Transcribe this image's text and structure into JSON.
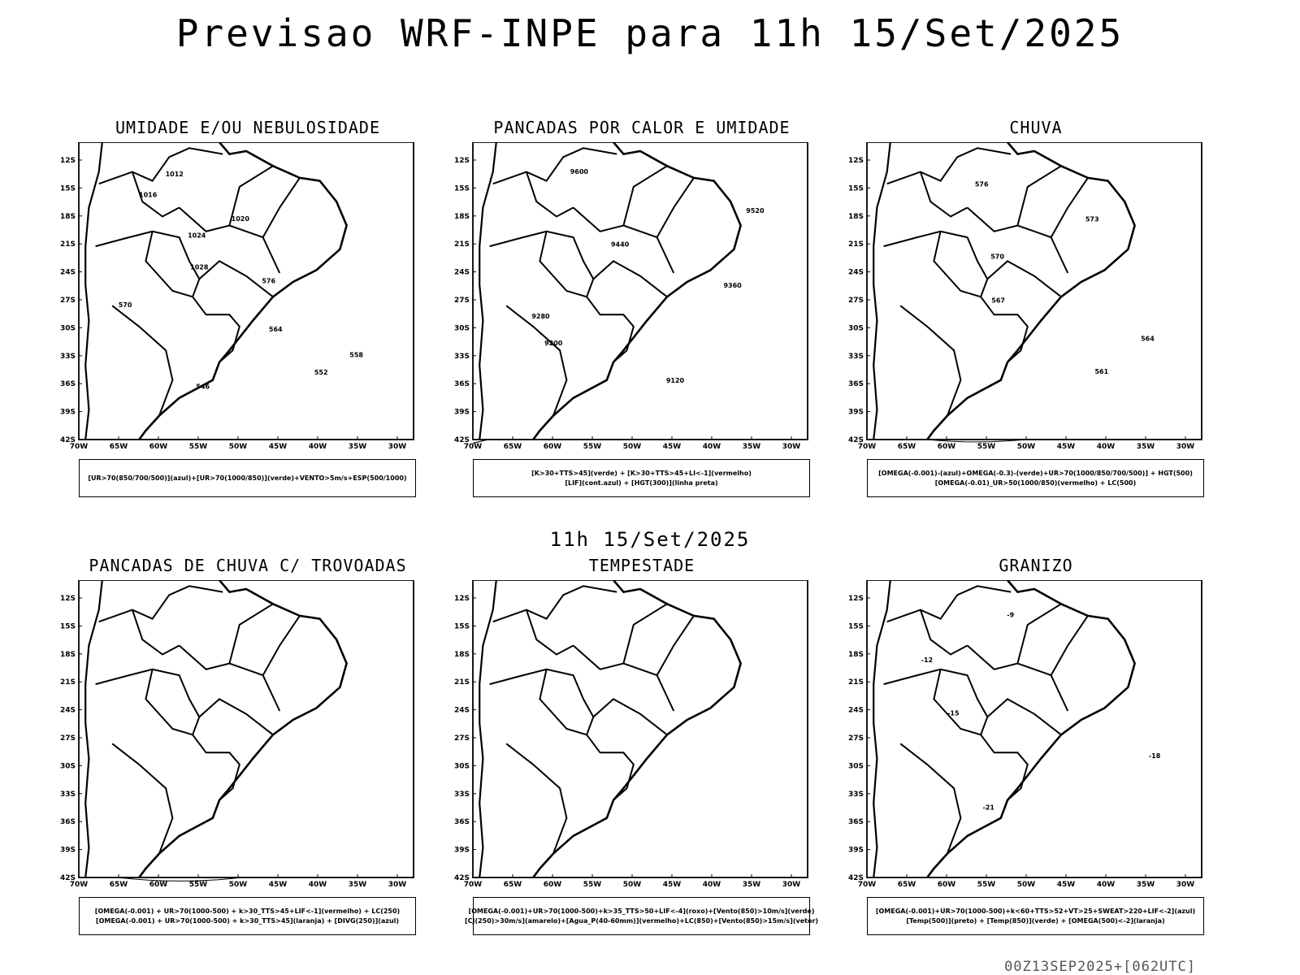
{
  "title": "Previsao WRF-INPE  para 11h 15/Set/2025",
  "subtitle": "11h 15/Set/2025",
  "footer": "00Z13SEP2025+[062UTC]",
  "axes": {
    "lat_labels": [
      "12S",
      "15S",
      "18S",
      "21S",
      "24S",
      "27S",
      "30S",
      "33S",
      "36S",
      "39S",
      "42S"
    ],
    "lon_labels": [
      "70W",
      "65W",
      "60W",
      "55W",
      "50W",
      "45W",
      "40W",
      "35W",
      "30W"
    ]
  },
  "colors": {
    "red": "#ff3b3b",
    "green": "#22dd22",
    "blue": "#2233ff",
    "lavender": "#a8a8ff",
    "darkteal": "#1f4040",
    "yellow": "#e6dd33",
    "orange": "#ff8a2a"
  },
  "panels": [
    {
      "id": "umidade",
      "title": "UMIDADE E/OU NEBULOSIDADE",
      "legend": [
        "[UR>70(850/700/500)](azul)+[UR>70(1000/850)](verde)+VENTO>5m/s+ESP(500/1000)"
      ],
      "labels": [
        "1012",
        "1016",
        "1020",
        "1024",
        "1028",
        "576",
        "570",
        "564",
        "558",
        "552",
        "546"
      ]
    },
    {
      "id": "pancadas-calor",
      "title": "PANCADAS POR CALOR E UMIDADE",
      "legend": [
        "[K>30+TTS>45](verde) + [K>30+TTS>45+LI<-1](vermelho)",
        "[LIF](cont.azul) + [HGT(300)](linha preta)"
      ],
      "labels": [
        "9600",
        "9520",
        "9440",
        "9360",
        "9280",
        "9200",
        "9120"
      ]
    },
    {
      "id": "chuva",
      "title": "CHUVA",
      "legend": [
        "[OMEGA(-0.001)-(azul)+OMEGA(-0.3)-(verde)+UR>70(1000/850/700/500)] + HGT(500)",
        "[OMEGA(-0.01)_UR>50(1000/850)(vermelho) + LC(500)"
      ],
      "labels": [
        "576",
        "573",
        "570",
        "567",
        "564",
        "561"
      ]
    },
    {
      "id": "pancadas-trovoadas",
      "title": "PANCADAS DE CHUVA C/ TROVOADAS",
      "legend": [
        "[OMEGA(-0.001) + UR>70(1000-500) + k>30_TTS>45+LIF<-1](vermelho) + LC(250)",
        "[OMEGA(-0.001) + UR>70(1000-500) + k>30_TTS>45](laranja) + [DIVG(250)](azul)"
      ],
      "labels": []
    },
    {
      "id": "tempestade",
      "title": "TEMPESTADE",
      "legend": [
        "[OMEGA(-0.001)+UR>70(1000-500)+k>35_TTS>50+LIF<-4](roxo)+[Vento(850)>10m/s](verde)",
        "[CJ(250)>30m/s](amarelo)+[Agua_P(40-60mm)](vermelho)+LC(850)+[Vento(850)>15m/s](vetor)"
      ],
      "labels": []
    },
    {
      "id": "granizo",
      "title": "GRANIZO",
      "legend": [
        "[OMEGA(-0.001)+UR>70(1000-500)+k<60+TTS>52+VT>25+SWEAT>220+LIF<-2](azul)",
        "[Temp(500)](preto) + [Temp(850)](verde) + [OMEGA(500)<-2](laranja)"
      ],
      "labels": [
        "-9",
        "-12",
        "-15",
        "-18",
        "-21"
      ]
    }
  ]
}
